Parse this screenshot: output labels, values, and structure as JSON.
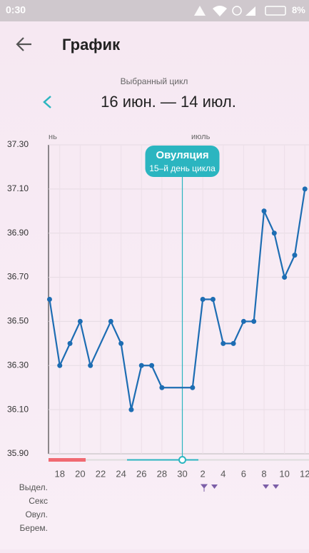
{
  "status_bar": {
    "time": "0:30",
    "battery": "8%"
  },
  "header": {
    "title": "График"
  },
  "cycle": {
    "caption": "Выбранный цикл",
    "range": "16 июн. — 14 июл."
  },
  "chart_data": {
    "type": "line",
    "months": [
      "нь",
      "июль"
    ],
    "x": [
      2,
      3,
      4,
      5,
      6,
      8,
      9,
      10,
      11,
      12,
      13,
      16,
      17,
      18,
      19,
      20,
      21,
      22,
      23,
      24,
      25,
      26,
      27
    ],
    "series": [
      {
        "color": "#1d6db3",
        "values": [
          36.6,
          36.3,
          36.4,
          36.5,
          36.3,
          36.5,
          36.4,
          36.1,
          36.3,
          36.3,
          36.2,
          36.2,
          36.6,
          36.6,
          36.4,
          36.4,
          36.5,
          36.5,
          37.0,
          36.9,
          36.7,
          36.8,
          37.1
        ]
      }
    ],
    "xlim": [
      1.9,
      27.4
    ],
    "xticks": [
      {
        "value": 3,
        "label": "18"
      },
      {
        "value": 5,
        "label": "20"
      },
      {
        "value": 7,
        "label": "22"
      },
      {
        "value": 9,
        "label": "24"
      },
      {
        "value": 11,
        "label": "26"
      },
      {
        "value": 13,
        "label": "28"
      },
      {
        "value": 15,
        "label": "30"
      },
      {
        "value": 17,
        "label": "2"
      },
      {
        "value": 19,
        "label": "4"
      },
      {
        "value": 21,
        "label": "6"
      },
      {
        "value": 23,
        "label": "8"
      },
      {
        "value": 25,
        "label": "10"
      },
      {
        "value": 27,
        "label": "12"
      }
    ],
    "ylim": [
      35.9,
      37.3
    ],
    "yticks": [
      {
        "value": 35.9,
        "label": "35.90"
      },
      {
        "value": 36.1,
        "label": "36.10"
      },
      {
        "value": 36.3,
        "label": "36.30"
      },
      {
        "value": 36.5,
        "label": "36.50"
      },
      {
        "value": 36.7,
        "label": "36.70"
      },
      {
        "value": 36.9,
        "label": "36.90"
      },
      {
        "value": 37.1,
        "label": "37.10"
      },
      {
        "value": 37.3,
        "label": "37.30"
      }
    ],
    "grid": true,
    "ovulation": {
      "day": 15,
      "title": "Овуляция",
      "subtitle": "15–й день цикла"
    }
  },
  "rows": [
    "Выдел.",
    "Секс",
    "Овул.",
    "Берем."
  ]
}
